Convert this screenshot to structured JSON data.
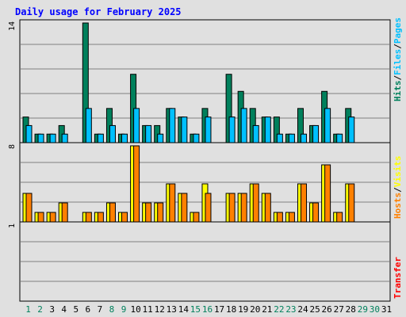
{
  "title": "Daily usage for February 2025",
  "colors": {
    "background": "#e0e0e0",
    "border": "#000000",
    "grid": "#808080",
    "title": "#0000ff",
    "hits": "#00805c",
    "files": "#00c0ff",
    "pages": "#00c0ff",
    "visits": "#ffff00",
    "hosts": "#ff8000",
    "transfer": "#ff0000",
    "weekday": "#000000",
    "weekend": "#00805c"
  },
  "right_labels": {
    "top": {
      "hits": "Hits",
      "sep1": "/",
      "files": "Files",
      "sep2": "/",
      "pages": "Pages"
    },
    "middle": {
      "hosts": "Hosts",
      "sep": "/",
      "visits": "Visits"
    },
    "bottom": {
      "transfer": "Transfer"
    }
  },
  "chart_data": [
    {
      "type": "bar",
      "panel": "hits-files-pages",
      "x": [
        1,
        2,
        3,
        4,
        5,
        6,
        7,
        8,
        9,
        10,
        11,
        12,
        13,
        14,
        15,
        16,
        17,
        18,
        19,
        20,
        21,
        22,
        23,
        24,
        25,
        26,
        27,
        28,
        29,
        30,
        31
      ],
      "ymax_label": "14",
      "ylim": [
        0,
        14
      ],
      "series": [
        {
          "name": "Hits",
          "values": [
            3,
            1,
            1,
            2,
            0,
            14,
            1,
            4,
            1,
            8,
            2,
            2,
            4,
            3,
            1,
            4,
            0,
            8,
            6,
            4,
            3,
            3,
            1,
            4,
            2,
            6,
            1,
            4,
            0,
            0,
            0
          ]
        },
        {
          "name": "Files",
          "values": [
            2,
            1,
            1,
            1,
            0,
            4,
            1,
            2,
            1,
            4,
            2,
            1,
            4,
            3,
            1,
            3,
            0,
            3,
            4,
            2,
            3,
            1,
            1,
            1,
            2,
            4,
            1,
            3,
            0,
            0,
            0
          ]
        }
      ]
    },
    {
      "type": "bar",
      "panel": "hosts-visits",
      "x": [
        1,
        2,
        3,
        4,
        5,
        6,
        7,
        8,
        9,
        10,
        11,
        12,
        13,
        14,
        15,
        16,
        17,
        18,
        19,
        20,
        21,
        22,
        23,
        24,
        25,
        26,
        27,
        28,
        29,
        30,
        31
      ],
      "ymax_label": "8",
      "ylim": [
        0,
        8
      ],
      "series": [
        {
          "name": "Visits",
          "values": [
            3,
            1,
            1,
            2,
            0,
            1,
            1,
            2,
            1,
            8,
            2,
            2,
            4,
            3,
            1,
            4,
            0,
            3,
            3,
            4,
            3,
            1,
            1,
            4,
            2,
            6,
            1,
            4,
            0,
            0,
            0
          ]
        },
        {
          "name": "Hosts",
          "values": [
            3,
            1,
            1,
            2,
            0,
            1,
            1,
            2,
            1,
            8,
            2,
            2,
            4,
            3,
            1,
            3,
            0,
            3,
            3,
            4,
            3,
            1,
            1,
            4,
            2,
            6,
            1,
            4,
            0,
            0,
            0
          ]
        }
      ]
    },
    {
      "type": "bar",
      "panel": "transfer",
      "x": [
        1,
        2,
        3,
        4,
        5,
        6,
        7,
        8,
        9,
        10,
        11,
        12,
        13,
        14,
        15,
        16,
        17,
        18,
        19,
        20,
        21,
        22,
        23,
        24,
        25,
        26,
        27,
        28,
        29,
        30,
        31
      ],
      "ymax_label": "1",
      "ylim": [
        0,
        1
      ],
      "series": [
        {
          "name": "Transfer",
          "values": [
            0,
            0,
            0,
            0,
            0,
            0,
            0,
            0,
            0,
            0,
            0,
            0,
            0,
            0,
            0,
            0,
            0,
            0,
            0,
            0,
            0,
            0,
            0,
            0,
            0,
            0,
            0,
            0,
            0,
            0,
            0
          ]
        }
      ]
    }
  ],
  "day_labels": [
    "1",
    "2",
    "3",
    "4",
    "5",
    "6",
    "7",
    "8",
    "9",
    "10",
    "11",
    "12",
    "13",
    "14",
    "15",
    "16",
    "17",
    "18",
    "19",
    "20",
    "21",
    "22",
    "23",
    "24",
    "25",
    "26",
    "27",
    "28",
    "29",
    "30",
    "31"
  ],
  "weekend_days": [
    1,
    2,
    8,
    9,
    15,
    16,
    22,
    23,
    29,
    30
  ]
}
